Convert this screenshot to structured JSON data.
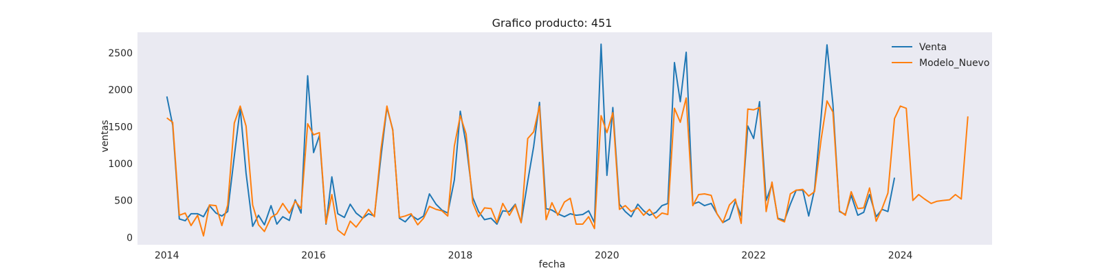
{
  "chart_data": {
    "type": "line",
    "title": "Grafico producto: 451",
    "xlabel": "fecha",
    "ylabel": "ventas",
    "xlim": [
      2013.6,
      2025.25
    ],
    "ylim": [
      -100,
      2780
    ],
    "xticks": [
      2014,
      2016,
      2018,
      2020,
      2022,
      2024
    ],
    "yticks": [
      0,
      500,
      1000,
      1500,
      2000,
      2500
    ],
    "grid": false,
    "legend": "top-right",
    "background": "#eaeaf2",
    "series": [
      {
        "name": "Venta",
        "color": "#1f77b4",
        "x": [
          2014.0,
          2014.08,
          2014.17,
          2014.25,
          2014.33,
          2014.42,
          2014.5,
          2014.58,
          2014.67,
          2014.75,
          2014.83,
          2014.92,
          2015.0,
          2015.08,
          2015.17,
          2015.25,
          2015.33,
          2015.42,
          2015.5,
          2015.58,
          2015.67,
          2015.75,
          2015.83,
          2015.92,
          2016.0,
          2016.08,
          2016.17,
          2016.25,
          2016.33,
          2016.42,
          2016.5,
          2016.58,
          2016.67,
          2016.75,
          2016.83,
          2016.92,
          2017.0,
          2017.08,
          2017.17,
          2017.25,
          2017.33,
          2017.42,
          2017.5,
          2017.58,
          2017.67,
          2017.75,
          2017.83,
          2017.92,
          2018.0,
          2018.08,
          2018.17,
          2018.25,
          2018.33,
          2018.42,
          2018.5,
          2018.58,
          2018.67,
          2018.75,
          2018.83,
          2018.92,
          2019.0,
          2019.08,
          2019.17,
          2019.25,
          2019.33,
          2019.42,
          2019.5,
          2019.58,
          2019.67,
          2019.75,
          2019.83,
          2019.92,
          2020.0,
          2020.08,
          2020.17,
          2020.25,
          2020.33,
          2020.42,
          2020.5,
          2020.58,
          2020.67,
          2020.75,
          2020.83,
          2020.92,
          2021.0,
          2021.08,
          2021.17,
          2021.25,
          2021.33,
          2021.42,
          2021.5,
          2021.58,
          2021.67,
          2021.75,
          2021.83,
          2021.92,
          2022.0,
          2022.08,
          2022.17,
          2022.25,
          2022.33,
          2022.42,
          2022.5,
          2022.58,
          2022.67,
          2022.75,
          2022.83,
          2022.92,
          2023.0,
          2023.08,
          2023.17,
          2023.25,
          2023.33,
          2023.42,
          2023.5,
          2023.58,
          2023.67,
          2023.75,
          2023.83,
          2023.92
        ],
        "values": [
          1910,
          1520,
          250,
          225,
          320,
          320,
          280,
          430,
          330,
          290,
          350,
          1100,
          1750,
          870,
          150,
          300,
          170,
          430,
          180,
          280,
          230,
          510,
          330,
          2190,
          1150,
          1380,
          180,
          820,
          320,
          270,
          450,
          330,
          260,
          320,
          290,
          1100,
          1760,
          1460,
          260,
          210,
          300,
          240,
          290,
          590,
          450,
          370,
          330,
          780,
          1710,
          1260,
          540,
          350,
          240,
          260,
          180,
          360,
          350,
          450,
          200,
          760,
          1230,
          1830,
          390,
          370,
          320,
          280,
          320,
          300,
          310,
          360,
          200,
          2620,
          840,
          1760,
          450,
          350,
          280,
          450,
          360,
          300,
          340,
          430,
          460,
          2370,
          1840,
          2510,
          450,
          480,
          430,
          460,
          320,
          200,
          250,
          490,
          290,
          1510,
          1340,
          1840,
          500,
          720,
          260,
          230,
          450,
          640,
          640,
          290,
          650,
          1640,
          2610,
          1810,
          350,
          310,
          570,
          300,
          340,
          580,
          280,
          380,
          350,
          810
        ]
      },
      {
        "name": "Modelo_Nuevo",
        "color": "#ff7f0e",
        "x": [
          2014.0,
          2014.08,
          2014.17,
          2014.25,
          2014.33,
          2014.42,
          2014.5,
          2014.58,
          2014.67,
          2014.75,
          2014.83,
          2014.92,
          2015.0,
          2015.08,
          2015.17,
          2015.25,
          2015.33,
          2015.42,
          2015.5,
          2015.58,
          2015.67,
          2015.75,
          2015.83,
          2015.92,
          2016.0,
          2016.08,
          2016.17,
          2016.25,
          2016.33,
          2016.42,
          2016.5,
          2016.58,
          2016.67,
          2016.75,
          2016.83,
          2016.92,
          2017.0,
          2017.08,
          2017.17,
          2017.25,
          2017.33,
          2017.42,
          2017.5,
          2017.58,
          2017.67,
          2017.75,
          2017.83,
          2017.92,
          2018.0,
          2018.08,
          2018.17,
          2018.25,
          2018.33,
          2018.42,
          2018.5,
          2018.58,
          2018.67,
          2018.75,
          2018.83,
          2018.92,
          2019.0,
          2019.08,
          2019.17,
          2019.25,
          2019.33,
          2019.42,
          2019.5,
          2019.58,
          2019.67,
          2019.75,
          2019.83,
          2019.92,
          2020.0,
          2020.08,
          2020.17,
          2020.25,
          2020.33,
          2020.42,
          2020.5,
          2020.58,
          2020.67,
          2020.75,
          2020.83,
          2020.92,
          2021.0,
          2021.08,
          2021.17,
          2021.25,
          2021.33,
          2021.42,
          2021.5,
          2021.58,
          2021.67,
          2021.75,
          2021.83,
          2021.92,
          2022.0,
          2022.08,
          2022.17,
          2022.25,
          2022.33,
          2022.42,
          2022.5,
          2022.58,
          2022.67,
          2022.75,
          2022.83,
          2022.92,
          2023.0,
          2023.08,
          2023.17,
          2023.25,
          2023.33,
          2023.42,
          2023.5,
          2023.58,
          2023.67,
          2023.75,
          2023.83,
          2023.92,
          2024.0,
          2024.08,
          2024.17,
          2024.25,
          2024.33,
          2024.42,
          2024.5,
          2024.58,
          2024.67,
          2024.75,
          2024.83,
          2024.92
        ],
        "values": [
          1620,
          1560,
          300,
          330,
          160,
          300,
          20,
          440,
          430,
          160,
          440,
          1550,
          1780,
          1510,
          440,
          170,
          80,
          270,
          320,
          460,
          330,
          490,
          390,
          1540,
          1390,
          1420,
          190,
          580,
          100,
          30,
          220,
          140,
          260,
          380,
          280,
          1200,
          1780,
          1450,
          270,
          290,
          320,
          170,
          260,
          420,
          380,
          360,
          290,
          1240,
          1650,
          1400,
          470,
          280,
          400,
          390,
          200,
          460,
          300,
          440,
          200,
          1340,
          1430,
          1780,
          240,
          470,
          300,
          480,
          530,
          180,
          180,
          280,
          120,
          1650,
          1420,
          1690,
          380,
          430,
          350,
          400,
          300,
          380,
          260,
          330,
          310,
          1750,
          1560,
          1890,
          430,
          580,
          590,
          570,
          320,
          200,
          440,
          520,
          190,
          1740,
          1730,
          1760,
          350,
          750,
          250,
          210,
          590,
          640,
          650,
          560,
          620,
          1330,
          1850,
          1700,
          360,
          300,
          620,
          390,
          400,
          670,
          220,
          390,
          600,
          1610,
          1780,
          1750,
          500,
          580,
          520,
          460,
          490,
          500,
          510,
          580,
          520,
          1640
        ]
      }
    ]
  }
}
